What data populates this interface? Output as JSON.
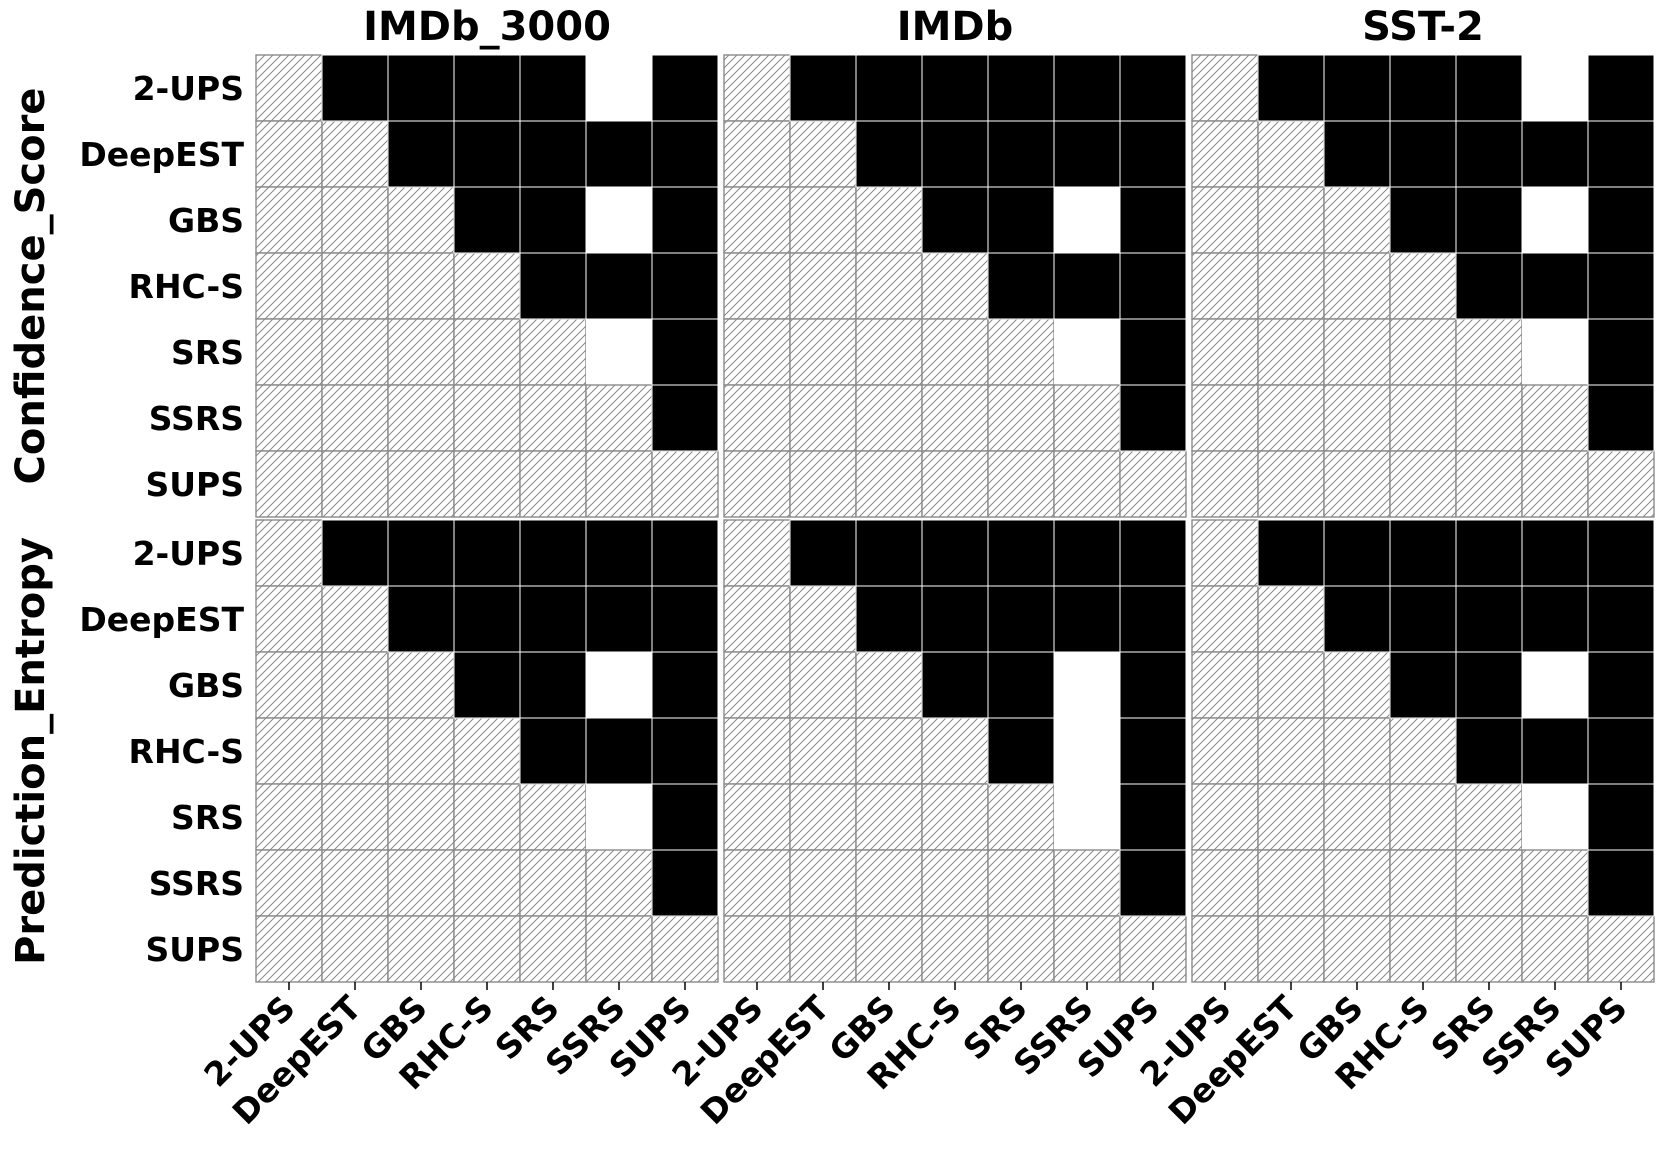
{
  "chart_data": {
    "type": "heatmap",
    "methods": [
      "2-UPS",
      "DeepEST",
      "GBS",
      "RHC-S",
      "SRS",
      "SSRS",
      "SUPS"
    ],
    "column_titles": [
      "IMDb_3000",
      "IMDb",
      "SST-2"
    ],
    "row_titles": [
      "Confidence_Score",
      "Prediction_Entropy"
    ],
    "cell_legend": {
      "1": "black (significant)",
      "0": "white",
      "-1": "hatched (lower triangle / diagonal)"
    },
    "panels": [
      {
        "row": "Confidence_Score",
        "dataset": "IMDb_3000",
        "matrix": [
          [
            -1,
            1,
            1,
            1,
            1,
            0,
            1
          ],
          [
            -1,
            -1,
            1,
            1,
            1,
            1,
            1
          ],
          [
            -1,
            -1,
            -1,
            1,
            1,
            0,
            1
          ],
          [
            -1,
            -1,
            -1,
            -1,
            1,
            1,
            1
          ],
          [
            -1,
            -1,
            -1,
            -1,
            -1,
            0,
            1
          ],
          [
            -1,
            -1,
            -1,
            -1,
            -1,
            -1,
            1
          ],
          [
            -1,
            -1,
            -1,
            -1,
            -1,
            -1,
            -1
          ]
        ]
      },
      {
        "row": "Confidence_Score",
        "dataset": "IMDb",
        "matrix": [
          [
            -1,
            1,
            1,
            1,
            1,
            1,
            1
          ],
          [
            -1,
            -1,
            1,
            1,
            1,
            1,
            1
          ],
          [
            -1,
            -1,
            -1,
            1,
            1,
            0,
            1
          ],
          [
            -1,
            -1,
            -1,
            -1,
            1,
            1,
            1
          ],
          [
            -1,
            -1,
            -1,
            -1,
            -1,
            0,
            1
          ],
          [
            -1,
            -1,
            -1,
            -1,
            -1,
            -1,
            1
          ],
          [
            -1,
            -1,
            -1,
            -1,
            -1,
            -1,
            -1
          ]
        ]
      },
      {
        "row": "Confidence_Score",
        "dataset": "SST-2",
        "matrix": [
          [
            -1,
            1,
            1,
            1,
            1,
            0,
            1
          ],
          [
            -1,
            -1,
            1,
            1,
            1,
            1,
            1
          ],
          [
            -1,
            -1,
            -1,
            1,
            1,
            0,
            1
          ],
          [
            -1,
            -1,
            -1,
            -1,
            1,
            1,
            1
          ],
          [
            -1,
            -1,
            -1,
            -1,
            -1,
            0,
            1
          ],
          [
            -1,
            -1,
            -1,
            -1,
            -1,
            -1,
            1
          ],
          [
            -1,
            -1,
            -1,
            -1,
            -1,
            -1,
            -1
          ]
        ]
      },
      {
        "row": "Prediction_Entropy",
        "dataset": "IMDb_3000",
        "matrix": [
          [
            -1,
            1,
            1,
            1,
            1,
            1,
            1
          ],
          [
            -1,
            -1,
            1,
            1,
            1,
            1,
            1
          ],
          [
            -1,
            -1,
            -1,
            1,
            1,
            0,
            1
          ],
          [
            -1,
            -1,
            -1,
            -1,
            1,
            1,
            1
          ],
          [
            -1,
            -1,
            -1,
            -1,
            -1,
            0,
            1
          ],
          [
            -1,
            -1,
            -1,
            -1,
            -1,
            -1,
            1
          ],
          [
            -1,
            -1,
            -1,
            -1,
            -1,
            -1,
            -1
          ]
        ]
      },
      {
        "row": "Prediction_Entropy",
        "dataset": "IMDb",
        "matrix": [
          [
            -1,
            1,
            1,
            1,
            1,
            1,
            1
          ],
          [
            -1,
            -1,
            1,
            1,
            1,
            1,
            1
          ],
          [
            -1,
            -1,
            -1,
            1,
            1,
            0,
            1
          ],
          [
            -1,
            -1,
            -1,
            -1,
            1,
            0,
            1
          ],
          [
            -1,
            -1,
            -1,
            -1,
            -1,
            0,
            1
          ],
          [
            -1,
            -1,
            -1,
            -1,
            -1,
            -1,
            1
          ],
          [
            -1,
            -1,
            -1,
            -1,
            -1,
            -1,
            -1
          ]
        ]
      },
      {
        "row": "Prediction_Entropy",
        "dataset": "SST-2",
        "matrix": [
          [
            -1,
            1,
            1,
            1,
            1,
            1,
            1
          ],
          [
            -1,
            -1,
            1,
            1,
            1,
            1,
            1
          ],
          [
            -1,
            -1,
            -1,
            1,
            1,
            0,
            1
          ],
          [
            -1,
            -1,
            -1,
            -1,
            1,
            1,
            1
          ],
          [
            -1,
            -1,
            -1,
            -1,
            -1,
            0,
            1
          ],
          [
            -1,
            -1,
            -1,
            -1,
            -1,
            -1,
            1
          ],
          [
            -1,
            -1,
            -1,
            -1,
            -1,
            -1,
            -1
          ]
        ]
      }
    ]
  }
}
